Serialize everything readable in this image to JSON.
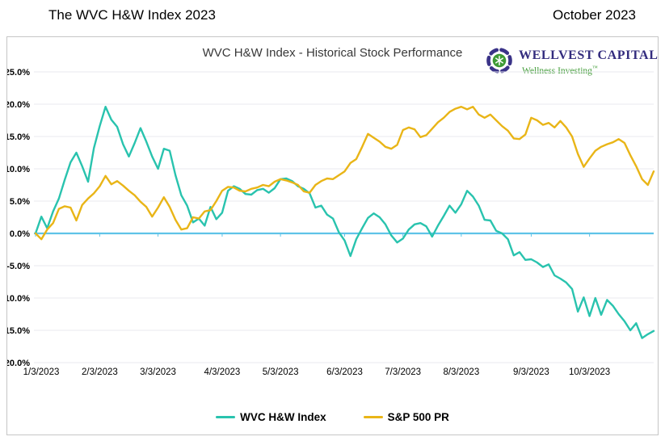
{
  "page": {
    "header_left": "The WVC H&W Index 2023",
    "header_right": "October 2023"
  },
  "logo": {
    "name": "WELLVEST CAPITAL",
    "tagline": "Wellness Investing",
    "trademark": "™",
    "name_color": "#332c7e",
    "tagline_color": "#3f9b35",
    "swirl_color": "#3a3388",
    "center_color": "#3e9b35"
  },
  "chart_data": {
    "type": "line",
    "title": "WVC H&W Index - Historical Stock Performance",
    "ylim": [
      -20,
      25
    ],
    "grid_on": true,
    "grid_color": "#e8e8ef",
    "zero_line_color": "#5fc3e8",
    "legend_position": "bottom-center",
    "y_ticks": [
      {
        "value": 25,
        "label": "25.0%"
      },
      {
        "value": 20,
        "label": "20.0%"
      },
      {
        "value": 15,
        "label": "15.0%"
      },
      {
        "value": 10,
        "label": "10.0%"
      },
      {
        "value": 5,
        "label": "5.0%"
      },
      {
        "value": 0,
        "label": "0.0%"
      },
      {
        "value": -5,
        "label": "-5.0%"
      },
      {
        "value": -10,
        "label": "-10.0%"
      },
      {
        "value": -15,
        "label": "-15.0%"
      },
      {
        "value": -20,
        "label": "-20.0%"
      }
    ],
    "x_ticks": [
      {
        "label": "1/3/2023",
        "index": 0
      },
      {
        "label": "2/3/2023",
        "index": 11
      },
      {
        "label": "3/3/2023",
        "index": 21
      },
      {
        "label": "4/3/2023",
        "index": 32
      },
      {
        "label": "5/3/2023",
        "index": 42
      },
      {
        "label": "6/3/2023",
        "index": 53
      },
      {
        "label": "7/3/2023",
        "index": 63
      },
      {
        "label": "8/3/2023",
        "index": 73
      },
      {
        "label": "9/3/2023",
        "index": 85
      },
      {
        "label": "10/3/2023",
        "index": 95
      }
    ],
    "series": [
      {
        "name": "WVC H&W Index",
        "color": "#29c3ae",
        "values": [
          0.0,
          2.6,
          0.8,
          3.4,
          5.4,
          8.3,
          11.0,
          12.5,
          10.4,
          8.0,
          13.2,
          16.6,
          19.6,
          17.6,
          16.5,
          13.8,
          11.9,
          14.0,
          16.3,
          14.2,
          11.9,
          10.0,
          13.1,
          12.8,
          9.0,
          5.9,
          4.3,
          1.7,
          2.3,
          1.2,
          4.1,
          2.2,
          3.2,
          6.6,
          7.3,
          6.9,
          6.1,
          6.0,
          6.7,
          6.9,
          6.3,
          7.0,
          8.4,
          8.5,
          8.1,
          7.3,
          6.9,
          6.2,
          4.0,
          4.3,
          2.9,
          2.3,
          0.2,
          -1.1,
          -3.5,
          -0.9,
          0.8,
          2.4,
          3.1,
          2.5,
          1.4,
          -0.3,
          -1.4,
          -0.8,
          0.6,
          1.4,
          1.6,
          1.1,
          -0.5,
          1.2,
          2.7,
          4.3,
          3.2,
          4.5,
          6.6,
          5.7,
          4.3,
          2.1,
          2.0,
          0.4,
          0.0,
          -0.9,
          -3.4,
          -2.9,
          -4.1,
          -4.0,
          -4.5,
          -5.2,
          -4.8,
          -6.5,
          -7.0,
          -7.6,
          -8.6,
          -12.1,
          -9.9,
          -12.8,
          -10.0,
          -12.6,
          -10.3,
          -11.2,
          -12.5,
          -13.6,
          -15.0,
          -13.9,
          -16.2,
          -15.6,
          -15.1
        ]
      },
      {
        "name": "S&P 500 PR",
        "color": "#e9b517",
        "values": [
          0.0,
          -0.9,
          0.6,
          1.6,
          3.8,
          4.2,
          4.0,
          2.0,
          4.4,
          5.4,
          6.2,
          7.3,
          8.9,
          7.6,
          8.1,
          7.4,
          6.6,
          5.9,
          4.9,
          4.1,
          2.6,
          4.0,
          5.6,
          4.1,
          2.1,
          0.6,
          0.8,
          2.5,
          2.3,
          3.4,
          3.6,
          5.0,
          6.6,
          7.2,
          7.1,
          6.6,
          6.5,
          6.9,
          7.1,
          7.5,
          7.3,
          8.0,
          8.4,
          8.2,
          7.9,
          7.5,
          6.5,
          6.3,
          7.5,
          8.1,
          8.5,
          8.4,
          9.0,
          9.6,
          10.9,
          11.5,
          13.4,
          15.4,
          14.8,
          14.2,
          13.4,
          13.1,
          13.7,
          16.0,
          16.4,
          16.1,
          14.9,
          15.2,
          16.2,
          17.2,
          17.9,
          18.8,
          19.3,
          19.6,
          19.2,
          19.6,
          18.4,
          17.9,
          18.4,
          17.5,
          16.6,
          15.9,
          14.7,
          14.6,
          15.3,
          17.9,
          17.5,
          16.8,
          17.1,
          16.4,
          17.4,
          16.4,
          15.0,
          12.3,
          10.3,
          11.6,
          12.8,
          13.4,
          13.8,
          14.1,
          14.6,
          14.0,
          12.1,
          10.4,
          8.4,
          7.5,
          9.6
        ]
      }
    ]
  }
}
